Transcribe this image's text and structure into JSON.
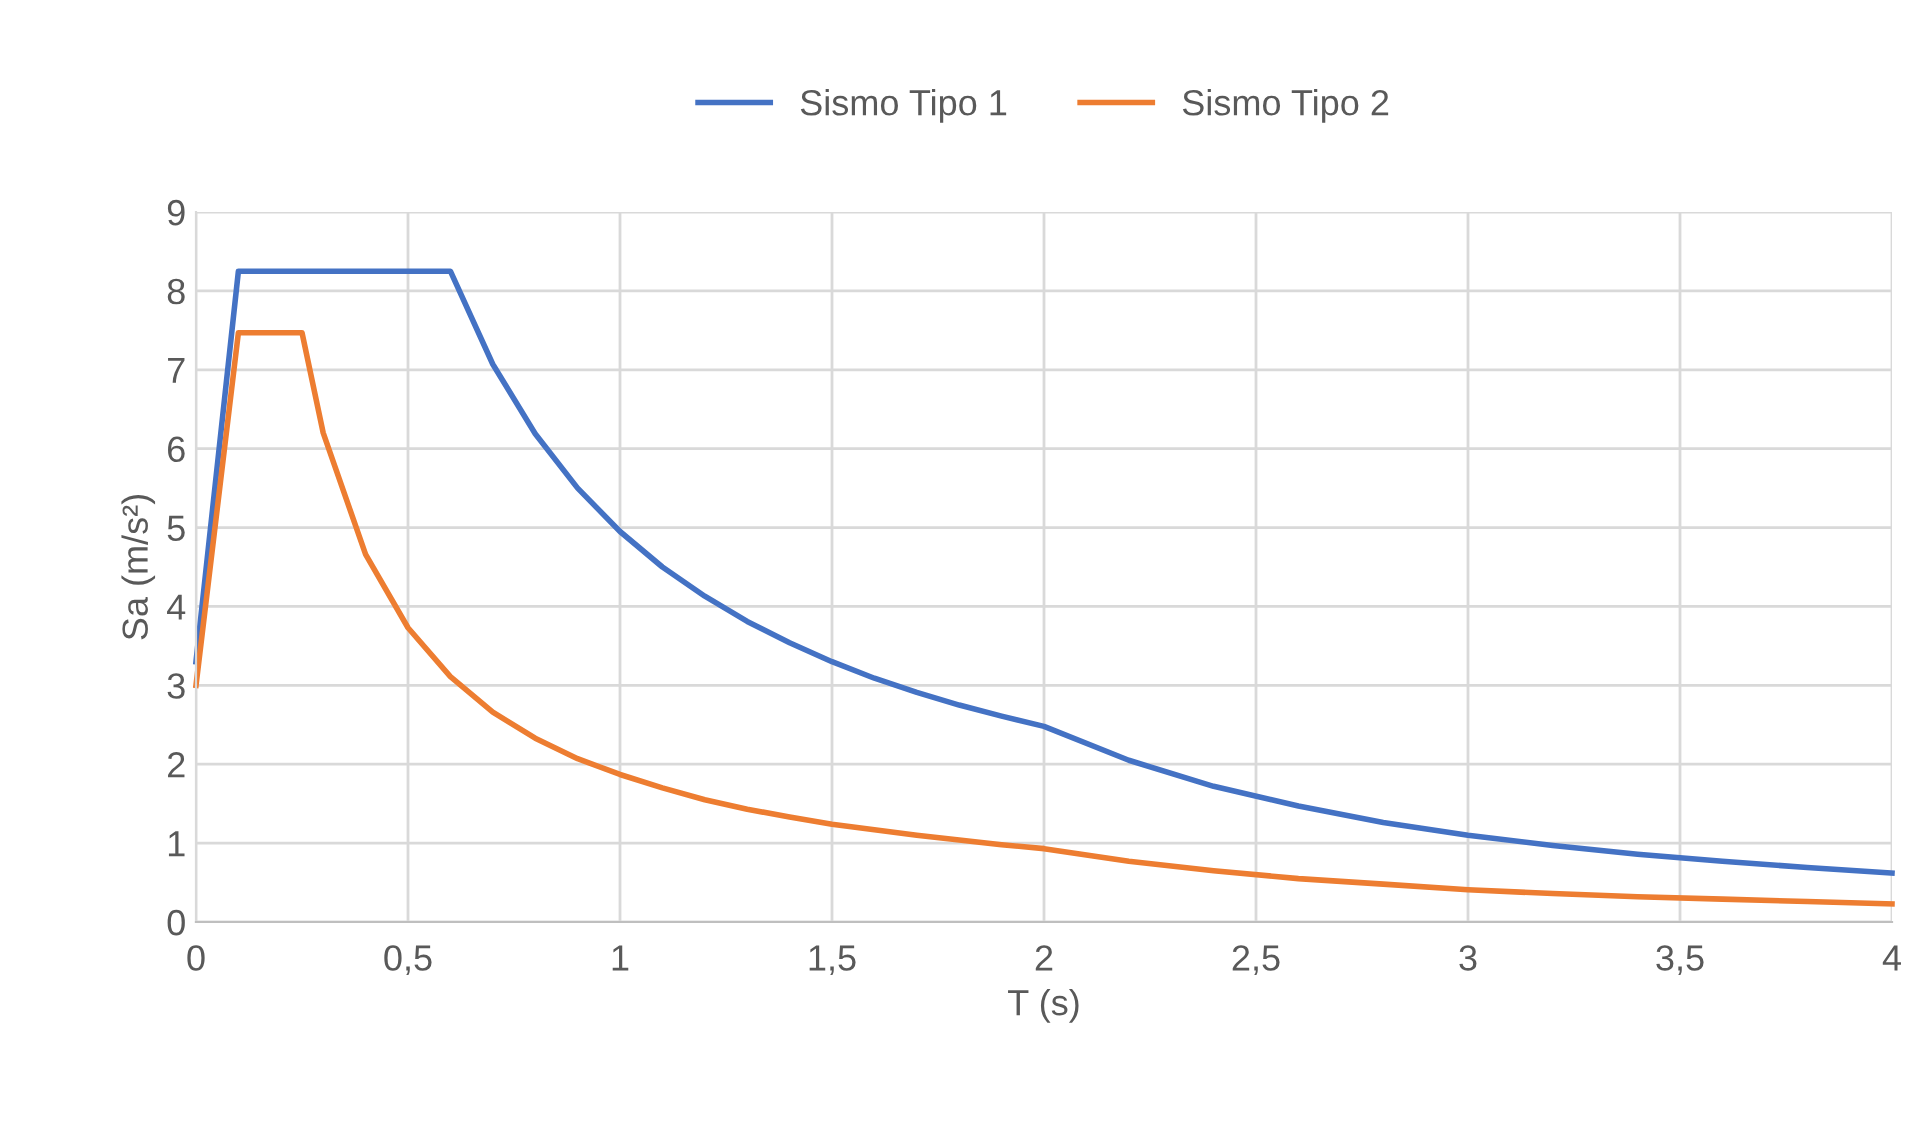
{
  "chart_data": {
    "type": "line",
    "xlabel": "T (s)",
    "ylabel": "Sa (m/s²)",
    "xlim": [
      0,
      4
    ],
    "ylim": [
      0,
      9
    ],
    "xticks": [
      0,
      {
        "value": 0.5,
        "label": "0,5"
      },
      1,
      {
        "value": 1.5,
        "label": "1,5"
      },
      2,
      {
        "value": 2.5,
        "label": "2,5"
      },
      3,
      {
        "value": 3.5,
        "label": "3,5"
      },
      4
    ],
    "yticks": [
      0,
      1,
      2,
      3,
      4,
      5,
      6,
      7,
      8,
      9
    ],
    "grid": true,
    "legend": "top",
    "marker": "none",
    "line_style": "solid",
    "series": [
      {
        "name": "Sismo Tipo 1",
        "color": "#4472c4",
        "x": [
          0,
          0.1,
          0.6,
          0.7,
          0.8,
          0.9,
          1.0,
          1.1,
          1.2,
          1.3,
          1.4,
          1.5,
          1.6,
          1.7,
          1.8,
          1.9,
          2.0,
          2.2,
          2.4,
          2.6,
          2.8,
          3.0,
          3.2,
          3.4,
          3.6,
          3.8,
          4.0
        ],
        "values": [
          3.3,
          8.25,
          8.25,
          7.07,
          6.19,
          5.5,
          4.95,
          4.5,
          4.13,
          3.81,
          3.54,
          3.3,
          3.09,
          2.91,
          2.75,
          2.61,
          2.48,
          2.05,
          1.72,
          1.47,
          1.26,
          1.1,
          0.97,
          0.86,
          0.77,
          0.69,
          0.62
        ]
      },
      {
        "name": "Sismo Tipo 2",
        "color": "#ed7d31",
        "x": [
          0,
          0.1,
          0.25,
          0.3,
          0.4,
          0.5,
          0.6,
          0.7,
          0.8,
          0.9,
          1.0,
          1.1,
          1.2,
          1.3,
          1.4,
          1.5,
          1.6,
          1.7,
          1.8,
          1.9,
          2.0,
          2.2,
          2.4,
          2.6,
          2.8,
          3.0,
          3.2,
          3.4,
          3.6,
          3.8,
          4.0
        ],
        "values": [
          3.0,
          7.47,
          7.47,
          6.2,
          4.66,
          3.73,
          3.11,
          2.66,
          2.33,
          2.07,
          1.87,
          1.7,
          1.55,
          1.43,
          1.33,
          1.24,
          1.17,
          1.1,
          1.04,
          0.98,
          0.93,
          0.77,
          0.65,
          0.55,
          0.48,
          0.41,
          0.36,
          0.32,
          0.29,
          0.26,
          0.23
        ]
      }
    ]
  }
}
